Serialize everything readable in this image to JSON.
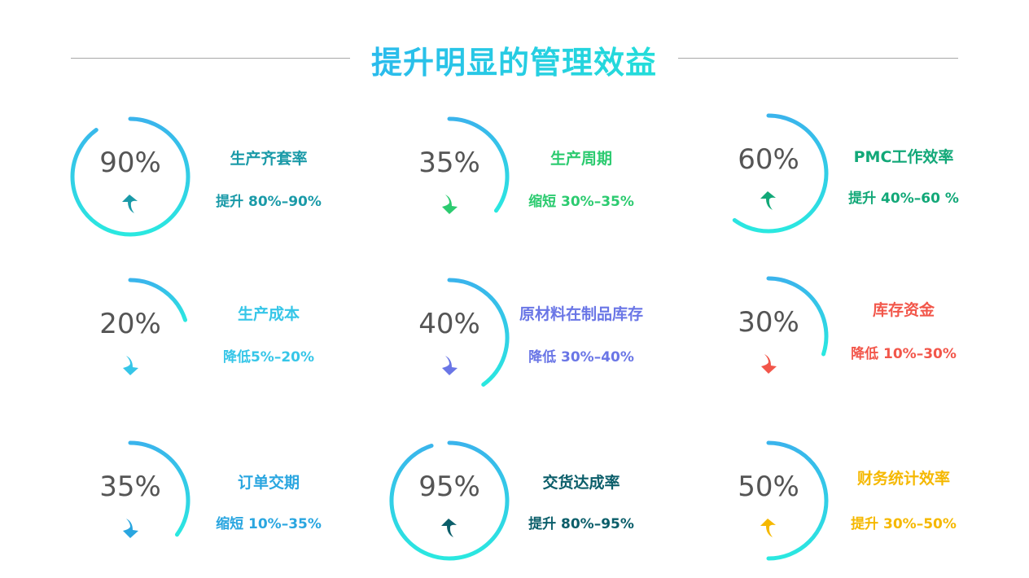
{
  "title": "提升明显的管理效益",
  "gradient": {
    "start": "#3ab4ec",
    "end": "#2ae8e0"
  },
  "cards": [
    {
      "value": 90,
      "title": "生产齐套率",
      "subtitle": "提升 80%–90%",
      "direction": "up",
      "color": "#1a9aa8"
    },
    {
      "value": 35,
      "title": "生产周期",
      "subtitle": "缩短 30%–35%",
      "direction": "down",
      "color": "#2ccb70"
    },
    {
      "value": 60,
      "title": "PMC工作效率",
      "subtitle": "提升 40%–60 %",
      "direction": "up",
      "color": "#12a878"
    },
    {
      "value": 20,
      "title": "生产成本",
      "subtitle": "降低5%–20%",
      "direction": "down",
      "color": "#36c6e8"
    },
    {
      "value": 40,
      "title": "原材料在制品库存",
      "subtitle": "降低 30%–40%",
      "direction": "down",
      "color": "#6a76e6"
    },
    {
      "value": 30,
      "title": "库存资金",
      "subtitle": "降低 10%–30%",
      "direction": "down",
      "color": "#f2564a"
    },
    {
      "value": 35,
      "title": "订单交期",
      "subtitle": "缩短 10%–35%",
      "direction": "down",
      "color": "#2aa6e0"
    },
    {
      "value": 95,
      "title": "交货达成率",
      "subtitle": "提升 80%–95%",
      "direction": "up",
      "color": "#0b5e6a"
    },
    {
      "value": 50,
      "title": "财务统计效率",
      "subtitle": "提升 30%–50%",
      "direction": "up",
      "color": "#f5b800"
    }
  ]
}
